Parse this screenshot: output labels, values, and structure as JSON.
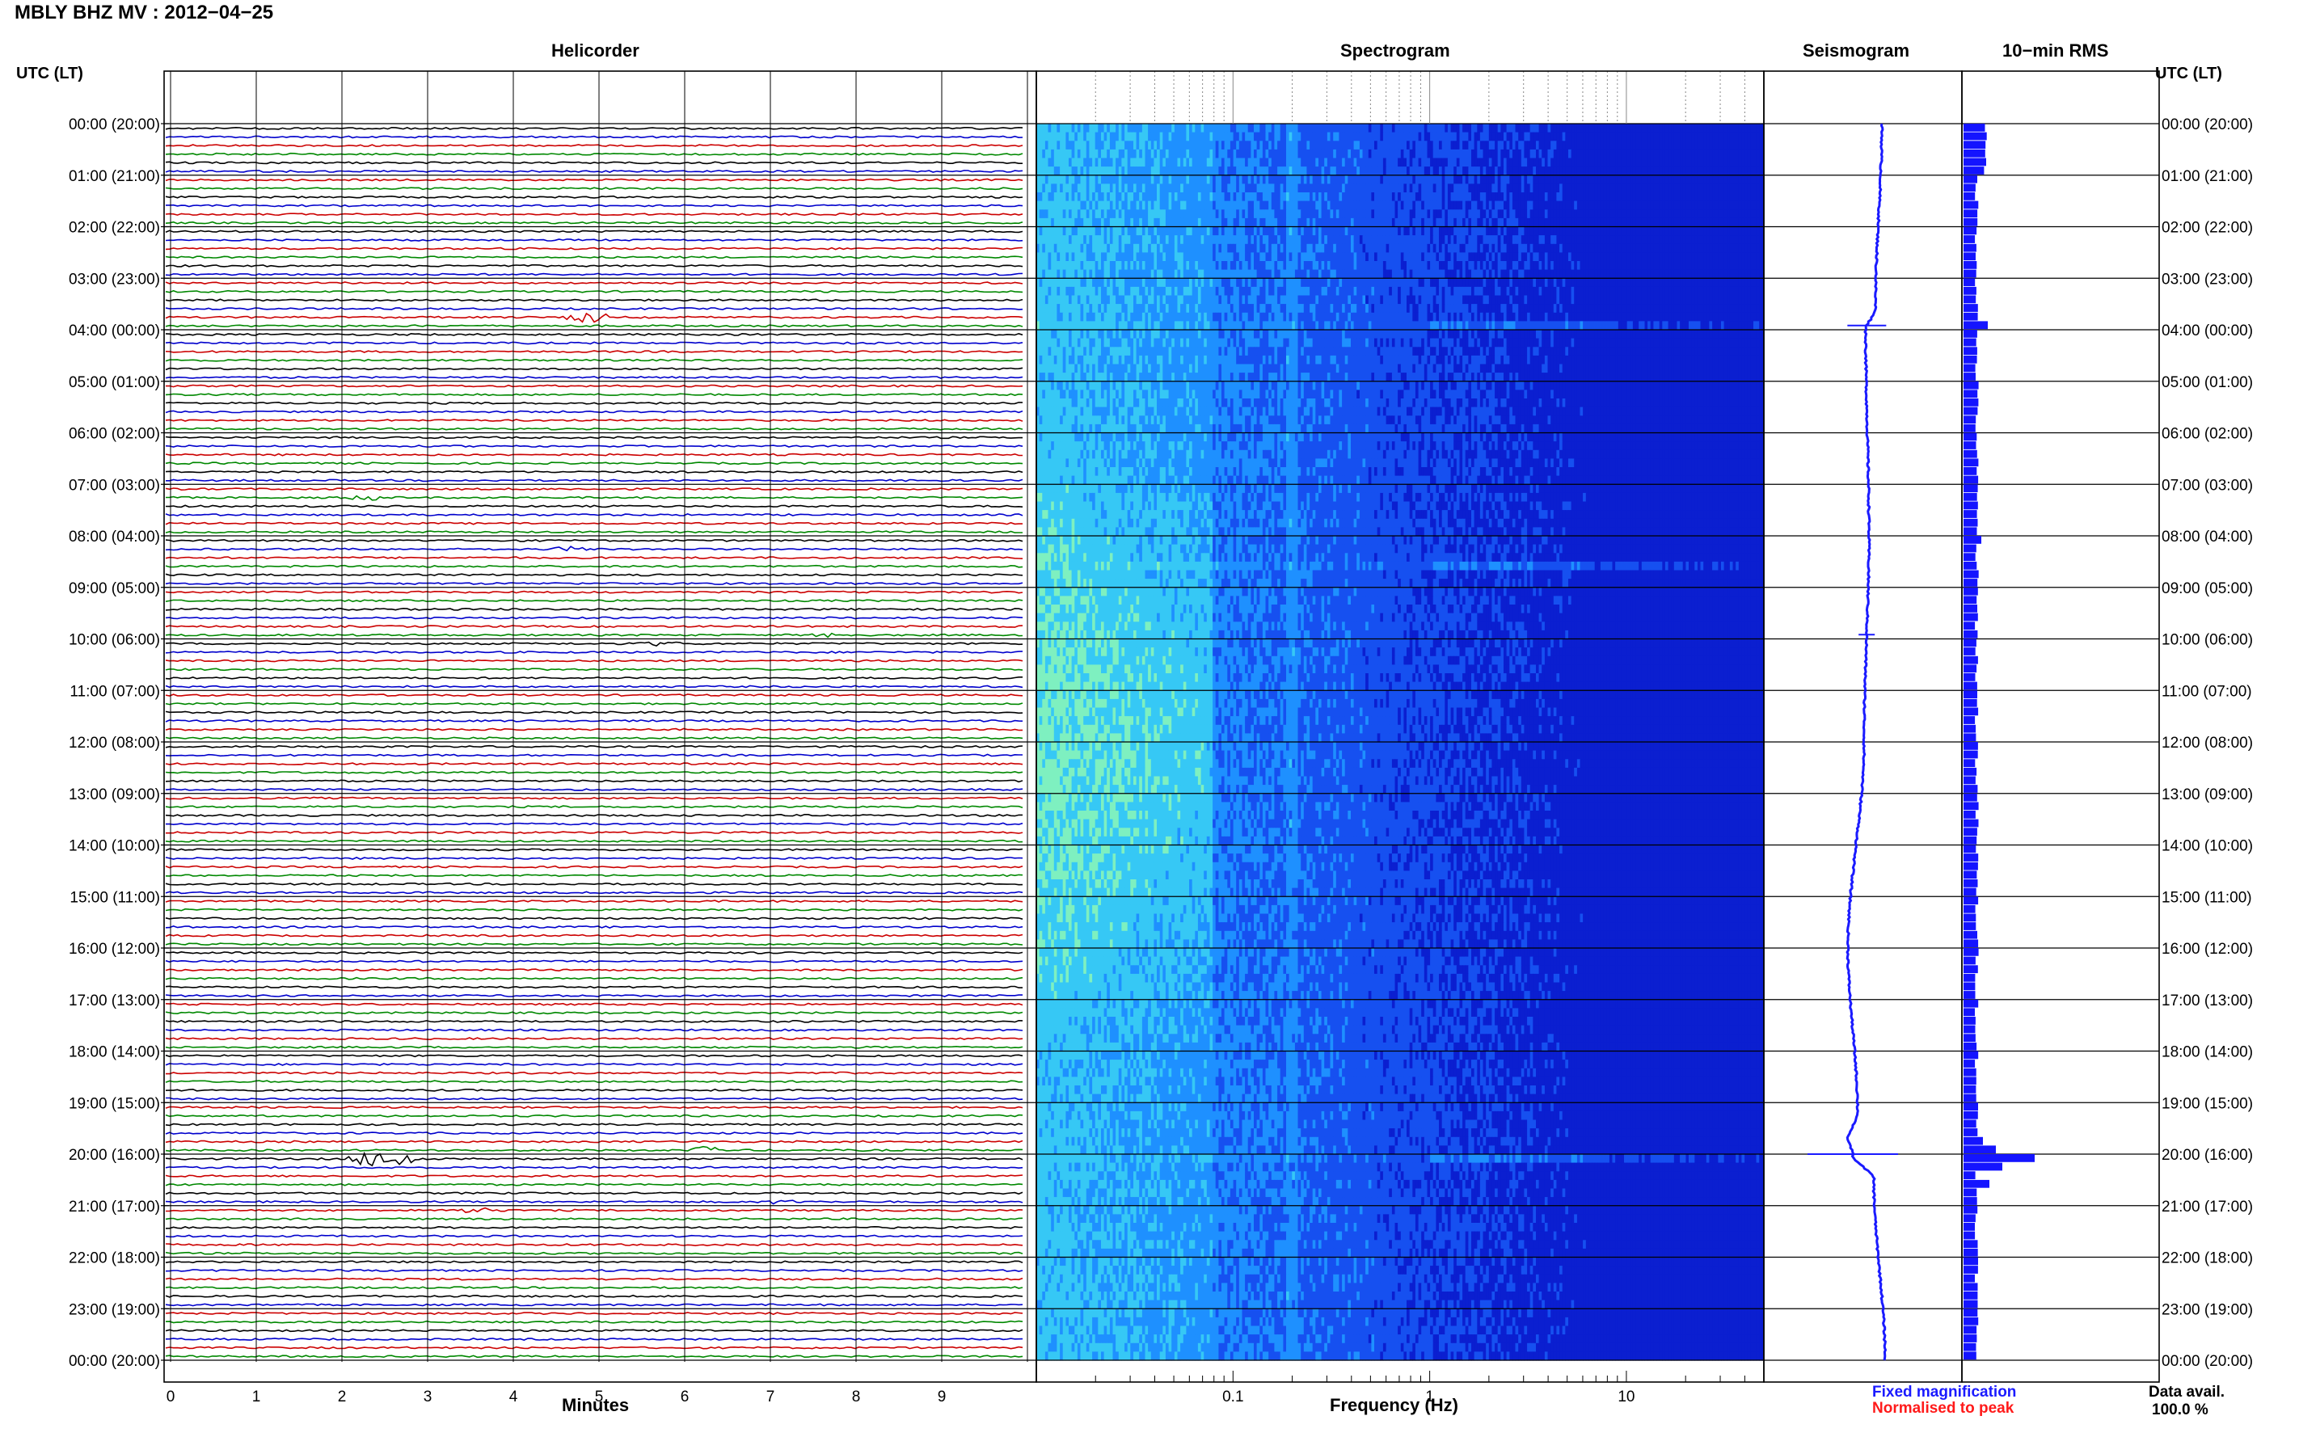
{
  "header": {
    "station_title": "MBLY BHZ MV : 2012−04−25",
    "utc_left": "UTC (LT)",
    "utc_right": "UTC (LT)"
  },
  "panels": {
    "helicorder": "Helicorder",
    "spectrogram": "Spectrogram",
    "seismogram": "Seismogram",
    "rms": "10−min RMS"
  },
  "footer": {
    "legend_fixed": "Fixed magnification",
    "legend_normalised": "Normalised to peak",
    "data_avail_label": "Data avail.",
    "data_avail_value": "100.0 %"
  },
  "colors": {
    "trace_cycle": [
      "#000000",
      "#0000cc",
      "#cc0000",
      "#008800"
    ],
    "seismogram": "#1a1aff",
    "rms_bar": "#1414ff",
    "legend_fixed": "#1a1aff",
    "legend_normalised": "#ff1a1a"
  },
  "chart_data": [
    {
      "type": "line",
      "title": "Helicorder",
      "xlabel": "Minutes",
      "xlim": [
        0,
        10
      ],
      "x_ticks": [
        "0",
        "1",
        "2",
        "3",
        "4",
        "5",
        "6",
        "7",
        "8",
        "9"
      ],
      "rows": 144,
      "row_minutes": 10,
      "y_tick_labels": [
        "00:00 (20:00)",
        "01:00 (21:00)",
        "02:00 (22:00)",
        "03:00 (23:00)",
        "04:00 (00:00)",
        "05:00 (01:00)",
        "06:00 (02:00)",
        "07:00 (03:00)",
        "08:00 (04:00)",
        "09:00 (05:00)",
        "10:00 (06:00)",
        "11:00 (07:00)",
        "12:00 (08:00)",
        "13:00 (09:00)",
        "14:00 (10:00)",
        "15:00 (11:00)",
        "16:00 (12:00)",
        "17:00 (13:00)",
        "18:00 (14:00)",
        "19:00 (15:00)",
        "20:00 (16:00)",
        "21:00 (17:00)",
        "22:00 (18:00)",
        "23:00 (19:00)",
        "00:00 (20:00)"
      ],
      "events": [
        {
          "utc": "03:40",
          "minute_start": 4.6,
          "minute_end": 5.5,
          "amplitude": 0.6
        },
        {
          "utc": "07:10",
          "minute_start": 2.1,
          "minute_end": 2.8,
          "amplitude": 0.2
        },
        {
          "utc": "08:10",
          "minute_start": 4.5,
          "minute_end": 5.1,
          "amplitude": 0.25
        },
        {
          "utc": "09:50",
          "minute_start": 7.5,
          "minute_end": 8.0,
          "amplitude": 0.3
        },
        {
          "utc": "10:00",
          "minute_start": 5.5,
          "minute_end": 6.3,
          "amplitude": 0.15
        },
        {
          "utc": "19:50",
          "minute_start": 6.1,
          "minute_end": 6.7,
          "amplitude": 0.3
        },
        {
          "utc": "20:00",
          "minute_start": 2.1,
          "minute_end": 3.4,
          "amplitude": 1.0
        },
        {
          "utc": "20:50",
          "minute_start": 7.0,
          "minute_end": 7.5,
          "amplitude": 0.25
        },
        {
          "utc": "21:00",
          "minute_start": 3.4,
          "minute_end": 4.0,
          "amplitude": 0.3
        }
      ]
    },
    {
      "type": "heatmap",
      "title": "Spectrogram",
      "xlabel": "Frequency (Hz)",
      "x_scale": "log",
      "xlim": [
        0.01,
        50
      ],
      "x_ticks": [
        "0.1",
        "1",
        "10"
      ],
      "y_tick_labels": [
        "00:00 (20:00)",
        "01:00 (21:00)",
        "02:00 (22:00)",
        "03:00 (23:00)",
        "04:00 (00:00)",
        "05:00 (01:00)",
        "06:00 (02:00)",
        "07:00 (03:00)",
        "08:00 (04:00)",
        "09:00 (05:00)",
        "10:00 (06:00)",
        "11:00 (07:00)",
        "12:00 (08:00)",
        "13:00 (09:00)",
        "14:00 (10:00)",
        "15:00 (11:00)",
        "16:00 (12:00)",
        "17:00 (13:00)",
        "18:00 (14:00)",
        "19:00 (15:00)",
        "20:00 (16:00)",
        "21:00 (17:00)",
        "22:00 (18:00)",
        "23:00 (19:00)",
        "00:00 (20:00)"
      ],
      "colormap": [
        "#0b1fd0",
        "#1650f0",
        "#1e90ff",
        "#36c8f5",
        "#7ef0c0",
        "#e8f060"
      ]
    },
    {
      "type": "line",
      "title": "Seismogram",
      "description_points_utc_hours": [
        0,
        3.6,
        4.0,
        8,
        12,
        16,
        19.2,
        19.7,
        20,
        20.5,
        24
      ],
      "x_offsets": [
        0.5,
        0.1,
        -0.5,
        -0.3,
        -0.6,
        -1.6,
        -1.0,
        -1.6,
        -1.3,
        0.0,
        0.7
      ],
      "spikes_utc": [
        "03:55",
        "09:55",
        "20:00"
      ]
    },
    {
      "type": "bar",
      "title": "10−min RMS",
      "bins": 144,
      "baseline": 0.35,
      "peaks": [
        {
          "utc": "03:50",
          "value": 0.75
        },
        {
          "utc": "08:00",
          "value": 0.55
        },
        {
          "utc": "19:40",
          "value": 0.6
        },
        {
          "utc": "19:50",
          "value": 1.0
        },
        {
          "utc": "20:00",
          "value": 2.2
        },
        {
          "utc": "20:10",
          "value": 1.2
        },
        {
          "utc": "20:30",
          "value": 0.8
        }
      ]
    }
  ]
}
